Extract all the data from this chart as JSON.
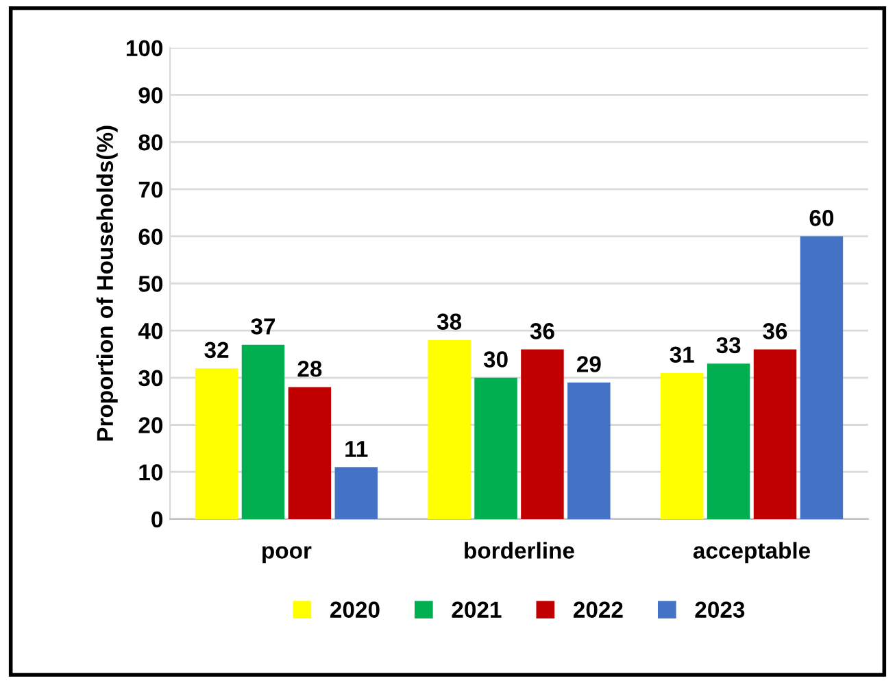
{
  "chart_data": {
    "type": "bar",
    "ylabel": "Proportion of Households(%)",
    "categories": [
      "poor",
      "borderline",
      "acceptable"
    ],
    "series": [
      {
        "name": "2020",
        "color": "#ffff00",
        "values": [
          32,
          38,
          31
        ]
      },
      {
        "name": "2021",
        "color": "#00b050",
        "values": [
          37,
          30,
          33
        ]
      },
      {
        "name": "2022",
        "color": "#c00000",
        "values": [
          28,
          36,
          36
        ]
      },
      {
        "name": "2023",
        "color": "#4472c4",
        "values": [
          11,
          29,
          60
        ]
      }
    ],
    "ylim": [
      0,
      100
    ],
    "yticks": [
      0,
      10,
      20,
      30,
      40,
      50,
      60,
      70,
      80,
      90,
      100
    ],
    "grid": "y",
    "legend": "bottom",
    "data_labels": true
  }
}
